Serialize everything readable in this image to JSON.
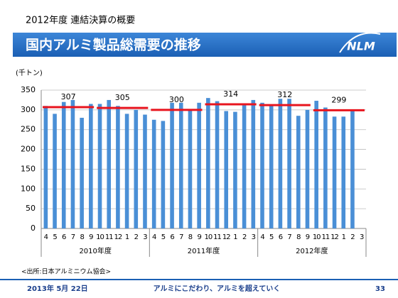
{
  "slide": {
    "heading": "2012年度  連結決算の概要",
    "title": "国内アルミ製品総需要の推移",
    "logo": "NLM",
    "source": "<出所:日本アルミニウム協会>",
    "date": "2013年 5月 22日",
    "slogan": "アルミにこだわり、アルミを超えていく",
    "page": "33"
  },
  "chart_data": {
    "type": "bar",
    "y_label": "(千トン)",
    "categories": [
      "4",
      "5",
      "6",
      "7",
      "8",
      "9",
      "10",
      "11",
      "12",
      "1",
      "2",
      "3",
      "4",
      "5",
      "6",
      "7",
      "8",
      "9",
      "10",
      "11",
      "12",
      "1",
      "2",
      "3",
      "4",
      "5",
      "6",
      "7",
      "8",
      "9",
      "10",
      "11",
      "12",
      "1",
      "2",
      "3"
    ],
    "values": [
      310,
      290,
      320,
      325,
      280,
      315,
      315,
      325,
      310,
      290,
      300,
      288,
      275,
      272,
      318,
      318,
      298,
      318,
      330,
      322,
      297,
      295,
      312,
      325,
      318,
      310,
      328,
      328,
      285,
      300,
      323,
      306,
      283,
      283,
      297,
      null
    ],
    "color": "#4a8fd6",
    "groups": [
      "2010年度",
      "2011年度",
      "2012年度"
    ],
    "half_year_averages": {
      "values": [
        307,
        305,
        300,
        314,
        312,
        299
      ],
      "color": "#e8141e"
    },
    "ylim": [
      0,
      350
    ],
    "yticks": [
      0,
      50,
      100,
      150,
      200,
      250,
      300,
      350
    ],
    "grid": true
  }
}
